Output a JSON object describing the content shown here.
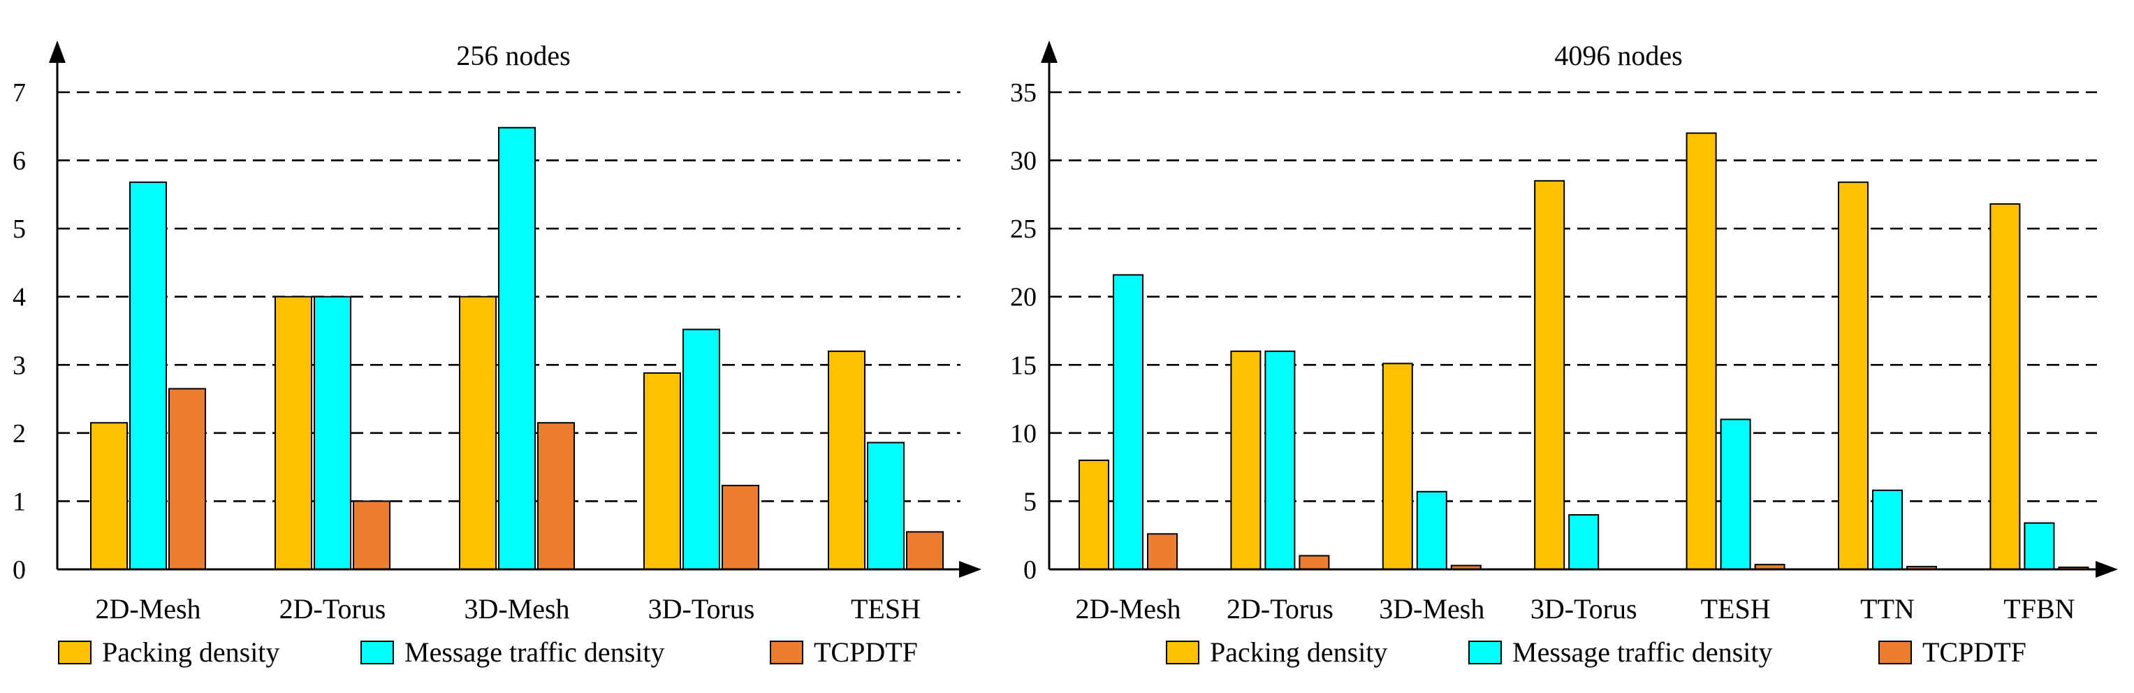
{
  "chart_data": [
    {
      "type": "bar",
      "title": "256 nodes",
      "xlabel": "",
      "ylabel": "",
      "ylim": [
        0,
        7
      ],
      "yticks": [
        0,
        1,
        2,
        3,
        4,
        5,
        6,
        7
      ],
      "grid": "dashed horizontal",
      "legend_position": "bottom",
      "categories": [
        "2D-Mesh",
        "2D-Torus",
        "3D-Mesh",
        "3D-Torus",
        "TESH"
      ],
      "series": [
        {
          "name": "Packing density",
          "color": "#FFC000",
          "values": [
            2.15,
            4.0,
            4.0,
            2.88,
            3.2
          ]
        },
        {
          "name": "Message traffic density",
          "color": "#00FFFF",
          "values": [
            5.68,
            4.0,
            6.48,
            3.52,
            1.86
          ]
        },
        {
          "name": "TCPDTF",
          "color": "#ED7D31",
          "values": [
            2.65,
            1.0,
            2.15,
            1.23,
            0.55
          ]
        }
      ]
    },
    {
      "type": "bar",
      "title": "4096 nodes",
      "xlabel": "",
      "ylabel": "",
      "ylim": [
        0,
        35
      ],
      "yticks": [
        0,
        5,
        10,
        15,
        20,
        25,
        30,
        35
      ],
      "grid": "dashed horizontal",
      "legend_position": "bottom",
      "categories": [
        "2D-Mesh",
        "2D-Torus",
        "3D-Mesh",
        "3D-Torus",
        "TESH",
        "TTN",
        "TFBN"
      ],
      "series": [
        {
          "name": "Packing density",
          "color": "#FFC000",
          "values": [
            8.0,
            16.0,
            15.1,
            28.5,
            32.0,
            28.4,
            26.8
          ]
        },
        {
          "name": "Message traffic density",
          "color": "#00FFFF",
          "values": [
            21.6,
            16.0,
            5.7,
            4.0,
            11.0,
            5.8,
            3.4
          ]
        },
        {
          "name": "TCPDTF",
          "color": "#ED7D31",
          "values": [
            2.6,
            1.0,
            0.28,
            0.0,
            0.35,
            0.2,
            0.15
          ]
        }
      ]
    }
  ]
}
